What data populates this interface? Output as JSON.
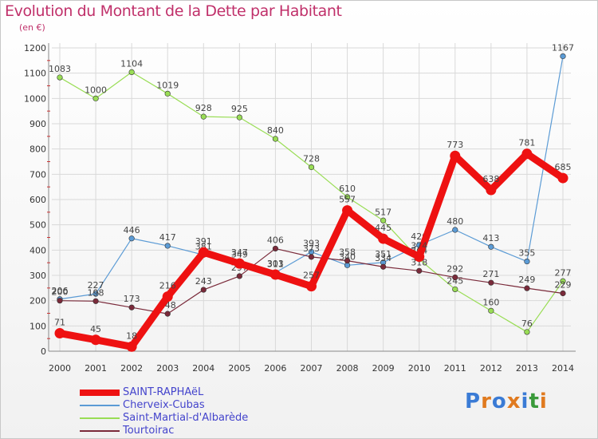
{
  "header": {
    "title": "Evolution du Montant de la Dette par Habitant",
    "subtitle": "(en €)"
  },
  "colors": {
    "title": "#c0306a",
    "grid": "#d9d9d9",
    "legend_text": "#4444cc"
  },
  "logo": {
    "text": "Proxiti",
    "colors": [
      "#3a7bd5",
      "#e07a1f",
      "#3a7bd5",
      "#e07a1f",
      "#3a7bd5",
      "#3a9a3a",
      "#e07a1f"
    ]
  },
  "chart_data": {
    "type": "line",
    "title": "Evolution du Montant de la Dette par Habitant",
    "ylabel": "(en €)",
    "x": [
      "2000",
      "2001",
      "2002",
      "2003",
      "2004",
      "2005",
      "2006",
      "2007",
      "2008",
      "2009",
      "2010",
      "2011",
      "2012",
      "2013",
      "2014"
    ],
    "ylim": [
      0,
      1200
    ],
    "yticks": [
      0,
      100,
      200,
      300,
      400,
      500,
      600,
      700,
      800,
      900,
      1000,
      1100,
      1200
    ],
    "grid": true,
    "legend_position": "bottom-left",
    "series": [
      {
        "name": "SAINT-RAPHAëL",
        "color": "#ee1111",
        "width": "thick",
        "values": [
          71,
          45,
          18,
          216,
          391,
          347,
          303,
          257,
          557,
          445,
          374,
          773,
          638,
          781,
          685
        ]
      },
      {
        "name": "Cherveix-Cubas",
        "color": "#5b9bd5",
        "width": "thin",
        "values": [
          206,
          227,
          446,
          417,
          381,
          349,
          311,
          393,
          340,
          351,
          420,
          480,
          413,
          355,
          1167
        ]
      },
      {
        "name": "Saint-Martial-d'Albarède",
        "color": "#99dd55",
        "width": "thin",
        "values": [
          1083,
          1000,
          1104,
          1019,
          928,
          925,
          840,
          728,
          610,
          517,
          364,
          245,
          160,
          76,
          277
        ]
      },
      {
        "name": "Tourtoirac",
        "color": "#7a2a3a",
        "width": "thin",
        "values": [
          200,
          198,
          173,
          148,
          243,
          297,
          406,
          373,
          358,
          334,
          318,
          292,
          271,
          249,
          229
        ]
      }
    ]
  }
}
